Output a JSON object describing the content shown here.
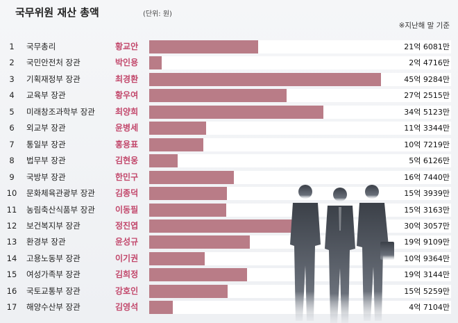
{
  "chart_data": {
    "type": "bar",
    "title": "국무위원 재산 총액",
    "unit_note": "(단위: 원)",
    "basis_note": "※지난해 말 기준",
    "categories": [
      "국무총리",
      "국민안전처 장관",
      "기획재정부 장관",
      "교육부 장관",
      "미래창조과학부 장관",
      "외교부 장관",
      "통일부 장관",
      "법무부 장관",
      "국방부 장관",
      "문화체육관광부 장관",
      "농림축산식품부 장관",
      "보건복지부 장관",
      "환경부 장관",
      "고용노동부 장관",
      "여성가족부 장관",
      "국토교통부 장관",
      "해양수산부 장관"
    ],
    "ranks": [
      "1",
      "2",
      "3",
      "4",
      "5",
      "6",
      "7",
      "8",
      "9",
      "10",
      "11",
      "12",
      "13",
      "14",
      "15",
      "16",
      "17"
    ],
    "names": [
      "황교안",
      "박인용",
      "최경환",
      "황우여",
      "최양희",
      "윤병세",
      "홍용표",
      "김현웅",
      "한민구",
      "김종덕",
      "이동필",
      "정진엽",
      "윤성규",
      "이기권",
      "김희정",
      "강호인",
      "김영석"
    ],
    "labels": [
      "21억 6081만",
      "2억 4716만",
      "45억 9284만",
      "27억 2515만",
      "34억 5123만",
      "11억 3344만",
      "10억 7219만",
      "5억 6126만",
      "16억 7440만",
      "15억 3939만",
      "15억 3163만",
      "30억 3057만",
      "19억 9109만",
      "10억 9364만",
      "19억 3144만",
      "15억 5259만",
      "4억 7104만"
    ],
    "values": [
      2160810000,
      247160000,
      4592840000,
      2725150000,
      3451230000,
      1133440000,
      1072190000,
      561260000,
      1674400000,
      1539390000,
      1531630000,
      3030570000,
      1991090000,
      1093640000,
      1931440000,
      1552590000,
      471040000
    ],
    "bar_color": "#b97c87",
    "name_color": "#c2476b"
  }
}
